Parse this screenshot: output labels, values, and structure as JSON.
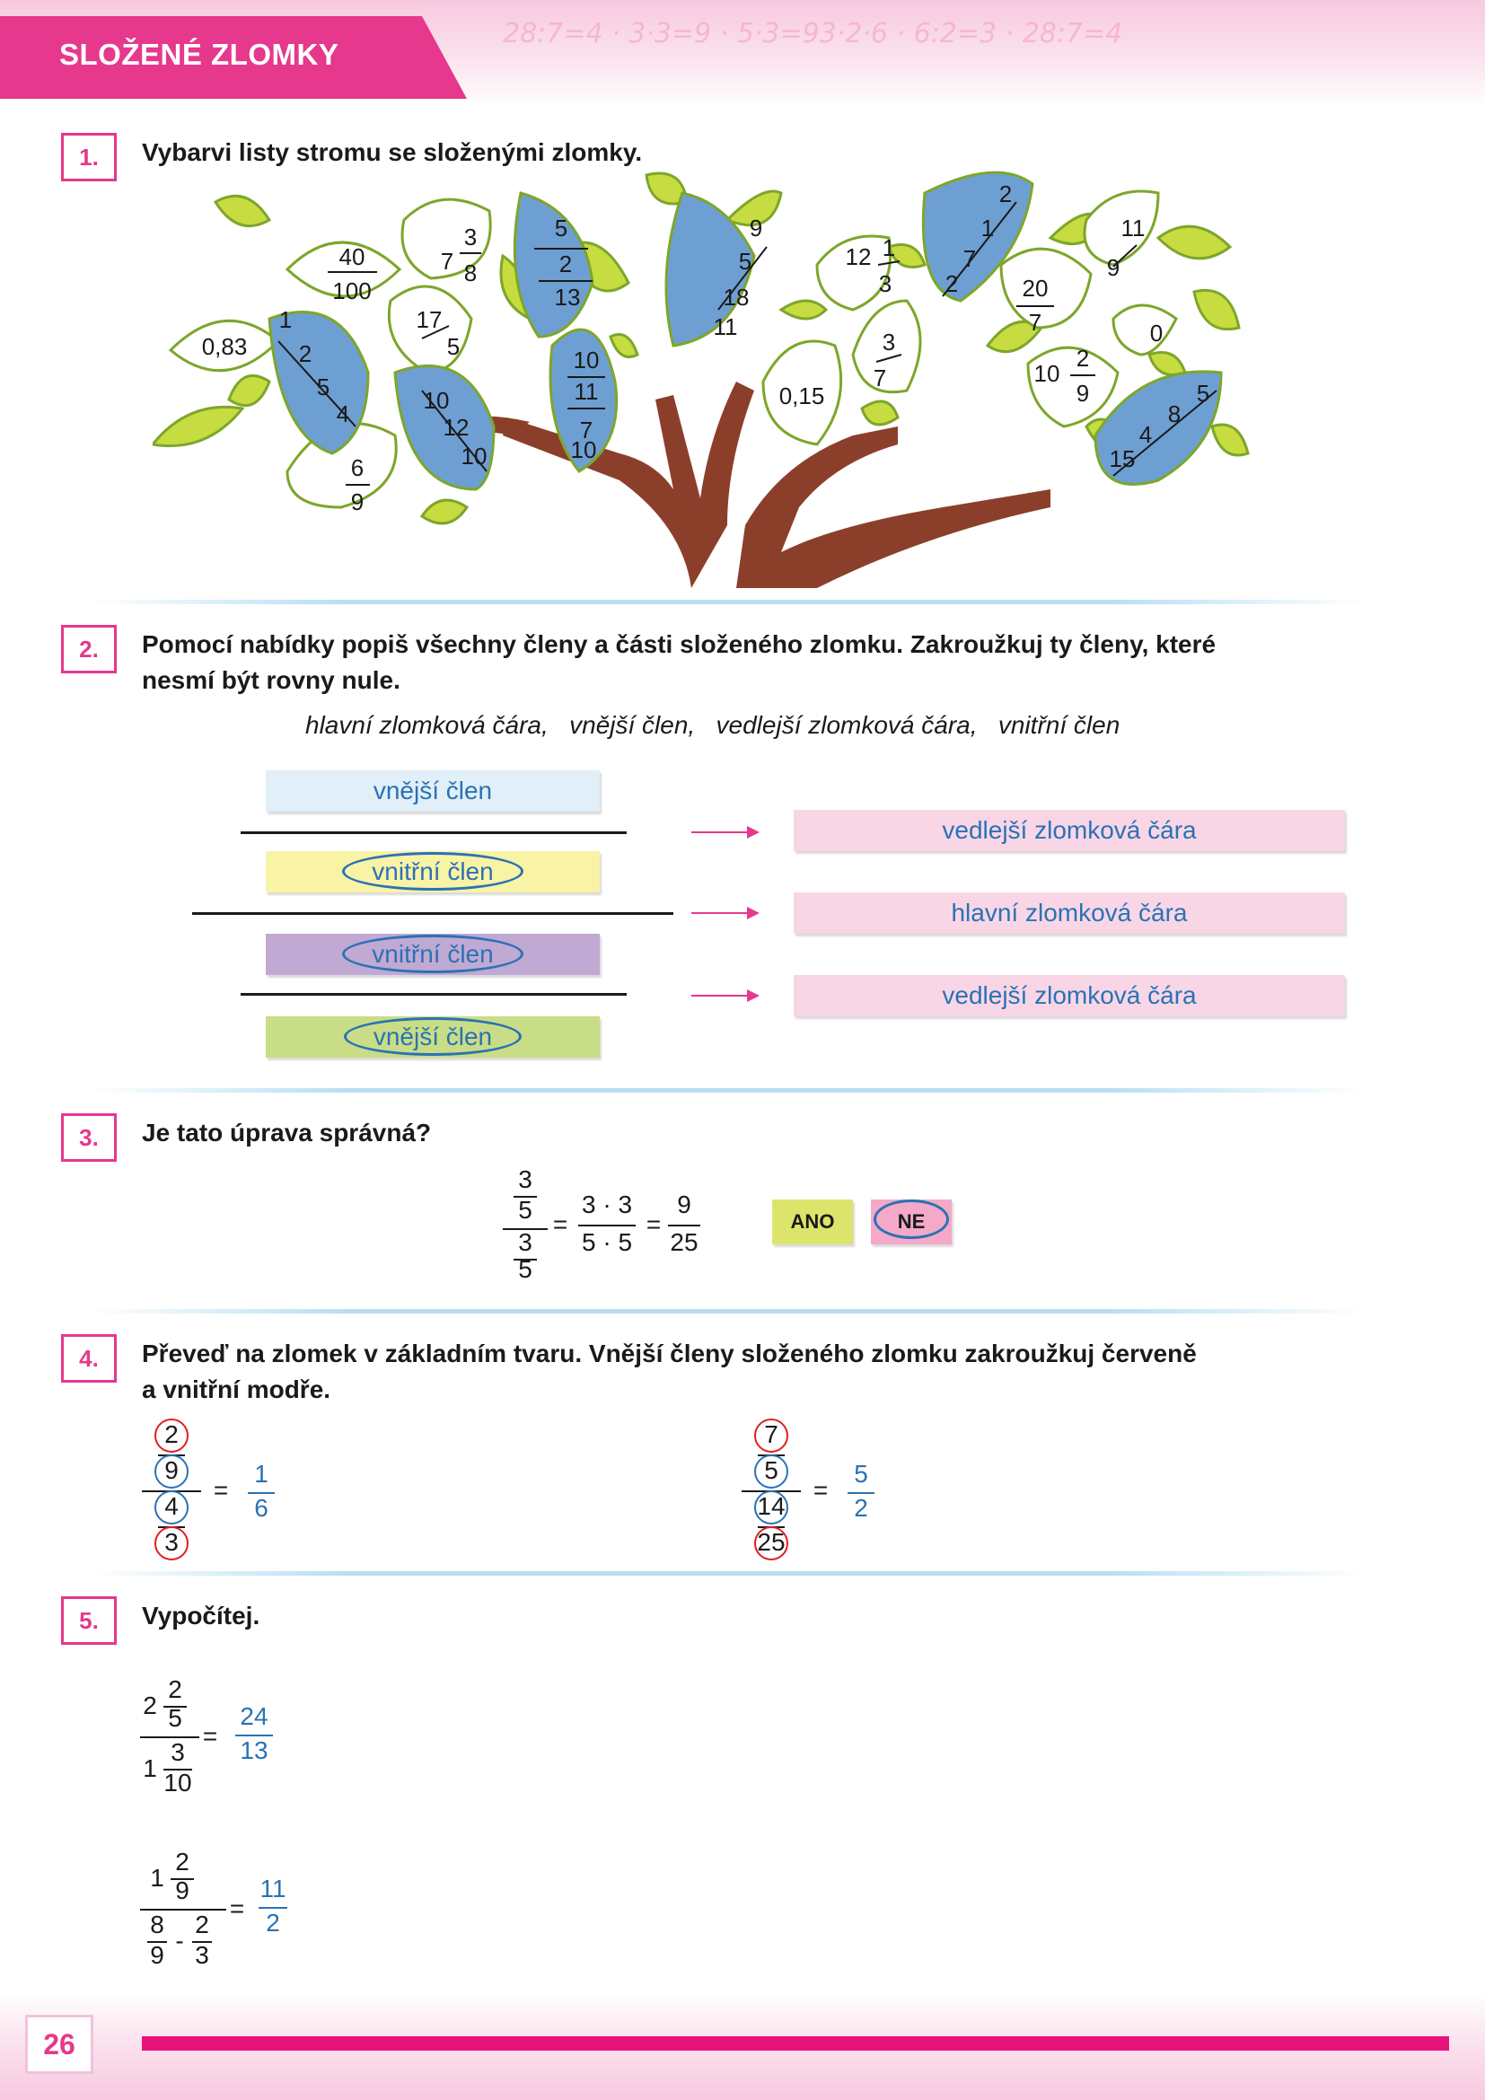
{
  "header": {
    "title": "SLOŽENÉ ZLOMKY"
  },
  "page_number": "26",
  "ex1": {
    "number": "1.",
    "text": "Vybarvi listy stromu se složenými zlomky.",
    "leaves": [
      {
        "kind": "whole",
        "t": "0,83"
      },
      {
        "kind": "frac",
        "n": "40",
        "d": "100"
      },
      {
        "kind": "mixed",
        "w": "7",
        "n": "3",
        "d": "8"
      },
      {
        "kind": "frac",
        "n": "17",
        "d": "5"
      },
      {
        "kind": "frac",
        "n": "6",
        "d": "9"
      },
      {
        "kind": "frac",
        "n": "10",
        "d": "11"
      },
      {
        "kind": "frac",
        "n": "7",
        "d": "11"
      },
      {
        "kind": "whole",
        "t": "0,15"
      },
      {
        "kind": "frac",
        "n": "3",
        "d": "7"
      },
      {
        "kind": "mixed",
        "w": "12",
        "n": "1",
        "d": "3"
      },
      {
        "kind": "frac",
        "n": "20",
        "d": "7"
      },
      {
        "kind": "frac",
        "n": "11",
        "d": "9"
      },
      {
        "kind": "whole",
        "t": "0"
      },
      {
        "kind": "mixed",
        "w": "10",
        "n": "2",
        "d": "9"
      },
      {
        "kind": "compound",
        "a": "1",
        "b": "2",
        "c": "5",
        "e": "4"
      },
      {
        "kind": "compound",
        "a": "10",
        "b": "12",
        "c": "10"
      },
      {
        "kind": "compound",
        "a": "5",
        "b": "2",
        "c": "13"
      },
      {
        "kind": "compound",
        "a": "9",
        "b": "5",
        "c": "18",
        "e": "11"
      },
      {
        "kind": "compound",
        "a": "2",
        "b": "1",
        "c": "7",
        "e": "2"
      },
      {
        "kind": "compound",
        "a": "5",
        "b": "8",
        "c": "4",
        "e": "15"
      },
      {
        "kind": "extra",
        "t": "10"
      }
    ]
  },
  "ex2": {
    "number": "2.",
    "text_line1": "Pomocí nabídky popiš všechny členy a části složeného zlomku. Zakroužkuj ty členy, které",
    "text_line2": "nesmí být rovny nule.",
    "options": "hlavní zlomková čára,   vnější člen,   vedlejší zlomková čára,   vnitřní člen",
    "labels": {
      "top": "vnější člen",
      "inner_top": "vnitřní člen",
      "inner_bottom": "vnitřní člen",
      "bottom": "vnější člen",
      "line1": "vedlejší zlomková čára",
      "line_main": "hlavní zlomková čára",
      "line2": "vedlejší zlomková čára"
    },
    "colors": {
      "top": "#e0eff8",
      "inner_top": "#f9f3a6",
      "inner_bottom": "#c0a9d2",
      "bottom": "#c9dd86",
      "right": "#f8d6e6"
    }
  },
  "ex3": {
    "number": "3.",
    "text": "Je tato úprava správná?",
    "eq": {
      "a": "3",
      "b": "5",
      "c": "3",
      "d": "5",
      "m1": "3 · 3",
      "m2": "5 · 5",
      "r1": "9",
      "r2": "25",
      "eq": "="
    },
    "yes": "ANO",
    "no": "NE",
    "colors": {
      "yes": "#dde46b",
      "no": "#f4a9c8"
    }
  },
  "ex4": {
    "number": "4.",
    "text_line1": "Převeď na zlomek v základním tvaru. Vnější členy složeného zlomku zakroužkuj červeně",
    "text_line2": "a vnitřní modře.",
    "p1": {
      "a": "2",
      "b": "9",
      "c": "4",
      "d": "3",
      "rn": "1",
      "rd": "6"
    },
    "p2": {
      "a": "7",
      "b": "5",
      "c": "14",
      "d": "25",
      "rn": "5",
      "rd": "2"
    },
    "eq": "="
  },
  "ex5": {
    "number": "5.",
    "text": "Vypočítej.",
    "p1": {
      "w1": "2",
      "n1": "2",
      "d1": "5",
      "w2": "1",
      "n2": "3",
      "d2": "10",
      "rn": "24",
      "rd": "13"
    },
    "p2": {
      "w1": "1",
      "n1": "2",
      "d1": "9",
      "a": "8",
      "b": "9",
      "minus": "-",
      "c": "2",
      "e": "3",
      "rn": "11",
      "rd": "2"
    },
    "eq": "="
  }
}
